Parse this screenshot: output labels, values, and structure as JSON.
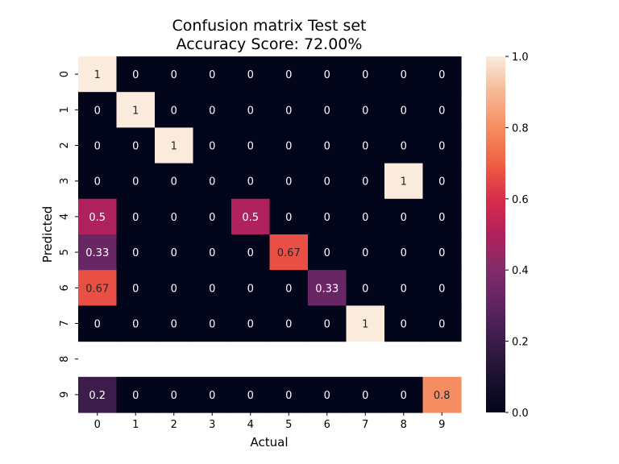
{
  "chart_data": {
    "type": "heatmap",
    "title_line1": "Confusion matrix Test set",
    "title_line2": "Accuracy Score: 72.00%",
    "xlabel": "Actual",
    "ylabel": "Predicted",
    "x_ticks": [
      "0",
      "1",
      "2",
      "3",
      "4",
      "5",
      "6",
      "7",
      "8",
      "9"
    ],
    "y_ticks": [
      "0",
      "1",
      "2",
      "3",
      "4",
      "5",
      "6",
      "7",
      "8",
      "9"
    ],
    "matrix": [
      [
        1,
        0,
        0,
        0,
        0,
        0,
        0,
        0,
        0,
        0
      ],
      [
        0,
        1,
        0,
        0,
        0,
        0,
        0,
        0,
        0,
        0
      ],
      [
        0,
        0,
        1,
        0,
        0,
        0,
        0,
        0,
        0,
        0
      ],
      [
        0,
        0,
        0,
        0,
        0,
        0,
        0,
        0,
        1,
        0
      ],
      [
        0.5,
        0,
        0,
        0,
        0.5,
        0,
        0,
        0,
        0,
        0
      ],
      [
        0.33,
        0,
        0,
        0,
        0,
        0.67,
        0,
        0,
        0,
        0
      ],
      [
        0.67,
        0,
        0,
        0,
        0,
        0,
        0.33,
        0,
        0,
        0
      ],
      [
        0,
        0,
        0,
        0,
        0,
        0,
        0,
        1,
        0,
        0
      ],
      null,
      [
        0.2,
        0,
        0,
        0,
        0,
        0,
        0,
        0,
        0,
        0.8
      ]
    ],
    "colorbar": {
      "min": 0.0,
      "max": 1.0,
      "ticks": [
        "0.0",
        "0.2",
        "0.4",
        "0.6",
        "0.8",
        "1.0"
      ],
      "colormap": "rocket"
    }
  }
}
